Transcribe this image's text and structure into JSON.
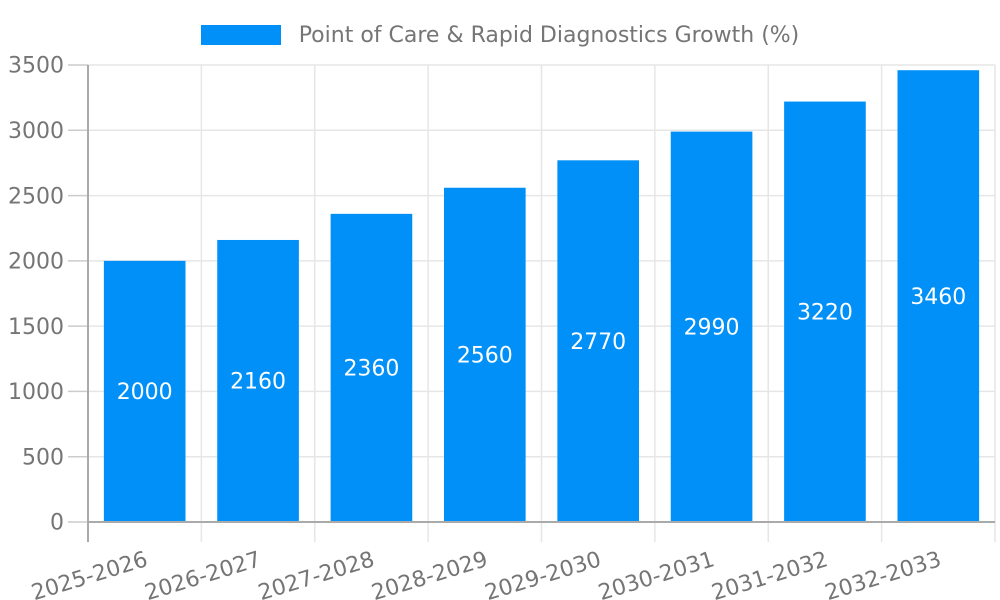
{
  "legend": {
    "label": "Point of Care & Rapid Diagnostics Growth (%)"
  },
  "chart_data": {
    "type": "bar",
    "title": "Point of Care & Rapid Diagnostics Growth (%)",
    "categories": [
      "2025-2026",
      "2026-2027",
      "2027-2028",
      "2028-2029",
      "2029-2030",
      "2030-2031",
      "2031-2032",
      "2032-2033"
    ],
    "values": [
      2000,
      2160,
      2360,
      2560,
      2770,
      2990,
      3220,
      3460
    ],
    "xlabel": "",
    "ylabel": "",
    "ylim": [
      0,
      3500
    ],
    "yticks": [
      0,
      500,
      1000,
      1500,
      2000,
      2500,
      3000,
      3500
    ],
    "grid": true,
    "legend_position": "top",
    "x_label_rotation": -17,
    "colors": {
      "series": "#0090F8",
      "bar_label": "#FFFFFF",
      "axis_text": "#757575",
      "grid": "#E6E6E6",
      "tick": "#CCCCCC",
      "axis_line": "#AAAAAA",
      "background": "#FFFFFF"
    }
  }
}
